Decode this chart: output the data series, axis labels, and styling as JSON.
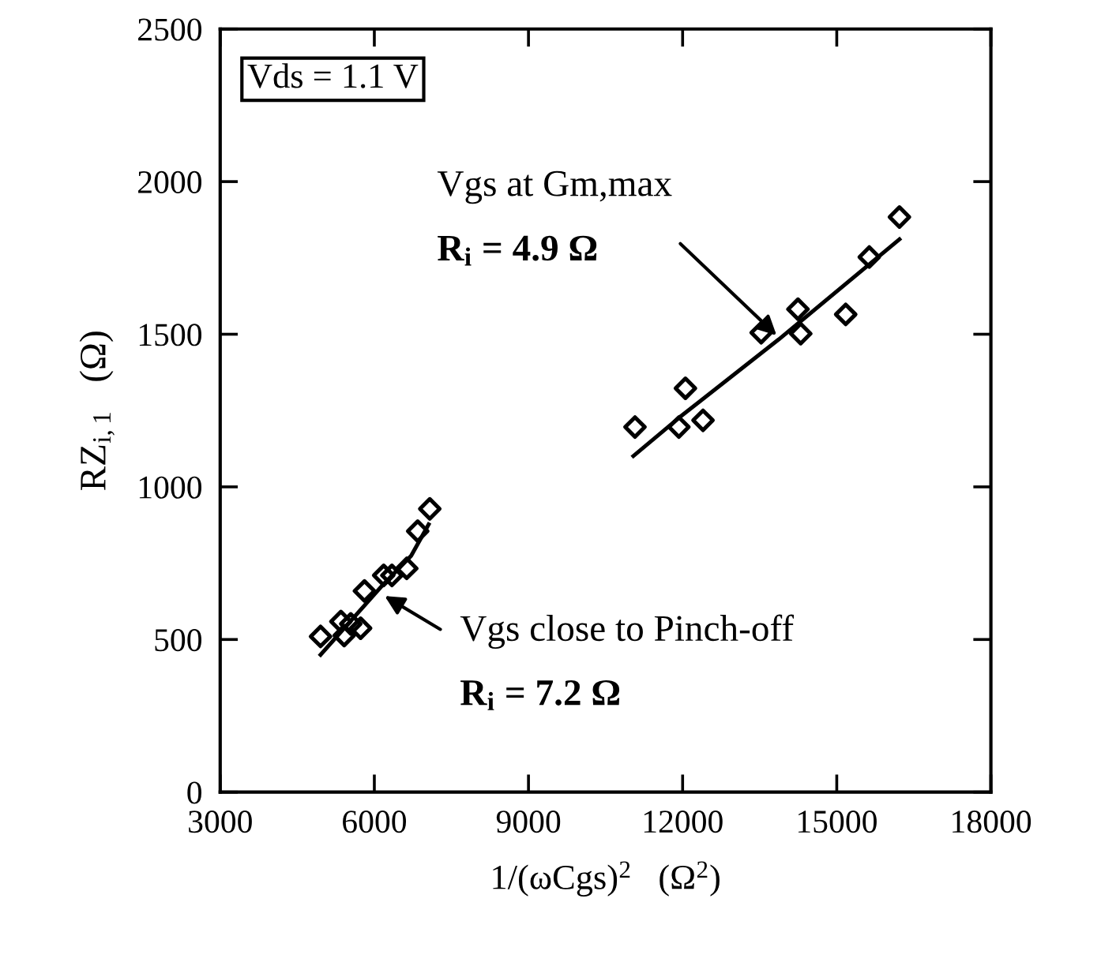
{
  "chart_data": {
    "type": "scatter",
    "xlabel": "1/(ωCgs)$^{2}$   (Ω$^{2}$)",
    "ylabel": "RZ$_{i,1}$   (Ω)",
    "xlim": [
      3000,
      18000
    ],
    "xticks": [
      3000,
      6000,
      9000,
      12000,
      15000,
      18000
    ],
    "ylim": [
      0,
      2500
    ],
    "yticks": [
      0,
      500,
      1000,
      1500,
      2000,
      2500
    ],
    "grid": false,
    "legend": false,
    "marker": "diamond",
    "series": [
      {
        "color": "#000000",
        "x": [
          4953,
          5349,
          5413,
          5541,
          5733,
          5808,
          6182,
          6342,
          6630,
          6844,
          7079
        ],
        "values": [
          510,
          559,
          513,
          551,
          537,
          659,
          710,
          710,
          733,
          855,
          928
        ]
      },
      {
        "color": "#000000",
        "x": [
          11073,
          11927,
          12055,
          12397,
          13529,
          14245,
          14298,
          15174,
          15633,
          16220
        ],
        "values": [
          1196,
          1196,
          1323,
          1218,
          1505,
          1582,
          1502,
          1565,
          1753,
          1884
        ]
      },
      {
        "type": "line",
        "color": "#000000",
        "marker": "none",
        "line_style": "solid",
        "x": [
          4953,
          6182,
          6716,
          7057
        ],
        "values": [
          450,
          682,
          774,
          877
        ]
      },
      {
        "type": "line",
        "color": "#000000",
        "marker": "none",
        "line_style": "solid",
        "x": [
          11041,
          11949,
          13871,
          16220
        ],
        "values": [
          1101,
          1229,
          1483,
          1811
        ]
      }
    ],
    "annotations": [
      "Vds = 1.1 V",
      {
        "text": "Vgs at Gm,max",
        "x": 13892,
        "y": 1486
      },
      "R$_{i}$ = 4.9 Ω",
      {
        "text": "Vgs close to Pinch-off",
        "x": 6128,
        "y": 650
      },
      "R$_{i}$ = 7.2 Ω"
    ]
  }
}
